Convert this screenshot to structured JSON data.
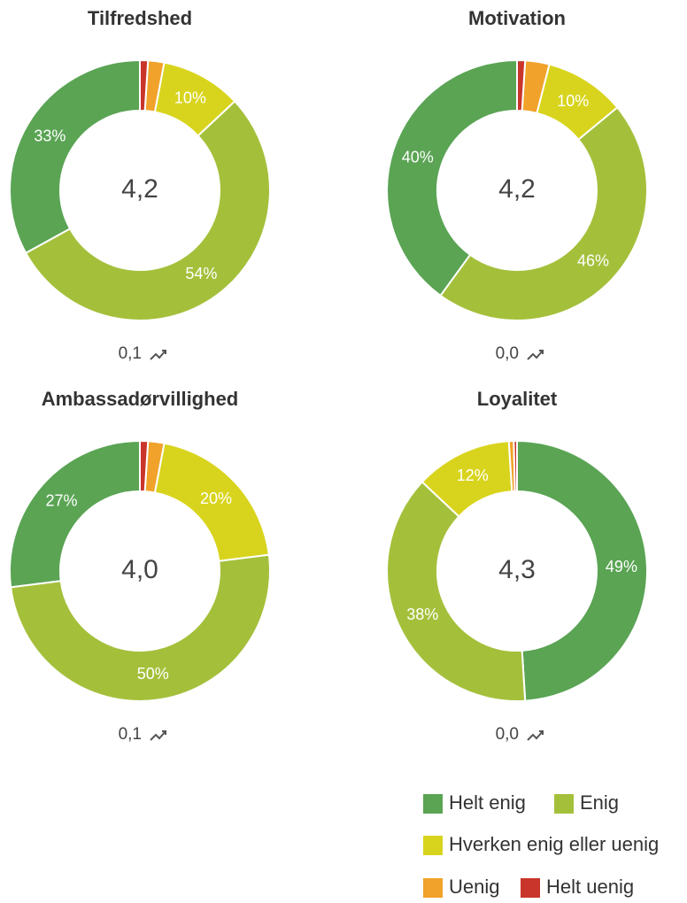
{
  "chart_data": [
    {
      "type": "pie",
      "title": "Tilfredshed",
      "direction": "counterclockwise",
      "categories": [
        "Helt enig",
        "Enig",
        "Hverken enig eller uenig",
        "Uenig",
        "Helt uenig"
      ],
      "values": [
        33,
        54,
        10,
        2,
        1
      ],
      "value_labels": [
        "33%",
        "54%",
        "10%",
        null,
        null
      ],
      "colors": [
        "#5aa454",
        "#a4c03b",
        "#d8d41d",
        "#f0a22a",
        "#c9352b"
      ],
      "center_label": "4,2",
      "trend": "0,1"
    },
    {
      "type": "pie",
      "title": "Motivation",
      "direction": "counterclockwise",
      "categories": [
        "Helt enig",
        "Enig",
        "Hverken enig eller uenig",
        "Uenig",
        "Helt uenig"
      ],
      "values": [
        40,
        46,
        10,
        3,
        1
      ],
      "value_labels": [
        "40%",
        "46%",
        "10%",
        null,
        null
      ],
      "colors": [
        "#5aa454",
        "#a4c03b",
        "#d8d41d",
        "#f0a22a",
        "#c9352b"
      ],
      "center_label": "4,2",
      "trend": "0,0"
    },
    {
      "type": "pie",
      "title": "Ambassadørvillighed",
      "direction": "counterclockwise",
      "categories": [
        "Helt enig",
        "Enig",
        "Hverken enig eller uenig",
        "Uenig",
        "Helt uenig"
      ],
      "values": [
        27,
        50,
        20,
        2,
        1
      ],
      "value_labels": [
        "27%",
        "50%",
        "20%",
        null,
        null
      ],
      "colors": [
        "#5aa454",
        "#a4c03b",
        "#d8d41d",
        "#f0a22a",
        "#c9352b"
      ],
      "center_label": "4,0",
      "trend": "0,1"
    },
    {
      "type": "pie",
      "title": "Loyalitet",
      "direction": "clockwise",
      "categories": [
        "Helt enig",
        "Enig",
        "Hverken enig eller uenig",
        "Uenig",
        "Helt uenig"
      ],
      "values": [
        49,
        38,
        12,
        0.6,
        0.4
      ],
      "value_labels": [
        "49%",
        "38%",
        "12%",
        null,
        null
      ],
      "colors": [
        "#5aa454",
        "#a4c03b",
        "#d8d41d",
        "#f0a22a",
        "#c9352b"
      ],
      "center_label": "4,3",
      "trend": "0,0"
    }
  ]
}
